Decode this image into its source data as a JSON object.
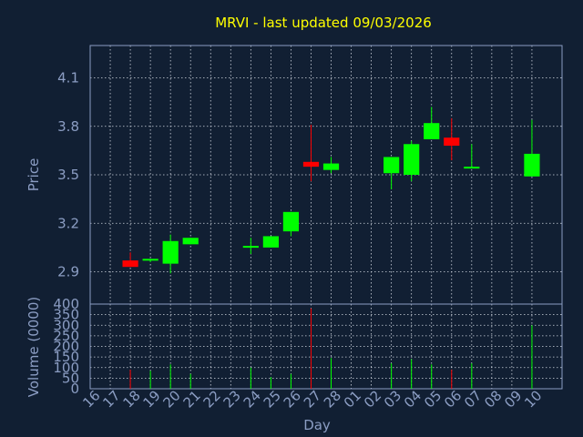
{
  "title": "MRVI - last updated 09/03/2026",
  "colors": {
    "background": "#111f33",
    "title": "#ffff00",
    "axis_text": "#8b9dc3",
    "up": "#00ff00",
    "down": "#ff0000",
    "grid": "#d0d6e0"
  },
  "chart_data": [
    {
      "type": "candlestick",
      "ylabel": "Price",
      "ylim": [
        2.7,
        4.3
      ],
      "yticks": [
        "2.9",
        "3.2",
        "3.5",
        "3.8",
        "4.1"
      ],
      "grid": true,
      "candles": [
        {
          "day": "17",
          "open": 2.97,
          "high": 3.02,
          "low": 2.93,
          "close": 2.93
        },
        {
          "day": "18",
          "open": 2.97,
          "high": 2.98,
          "low": 2.96,
          "close": 2.98
        },
        {
          "day": "19",
          "open": 2.95,
          "high": 3.13,
          "low": 2.89,
          "close": 3.09
        },
        {
          "day": "20",
          "open": 3.07,
          "high": 3.11,
          "low": 3.07,
          "close": 3.11
        },
        {
          "day": "23",
          "open": 3.05,
          "high": 3.11,
          "low": 3.01,
          "close": 3.06
        },
        {
          "day": "24",
          "open": 3.05,
          "high": 3.12,
          "low": 3.05,
          "close": 3.12
        },
        {
          "day": "25",
          "open": 3.15,
          "high": 3.27,
          "low": 3.12,
          "close": 3.27
        },
        {
          "day": "26",
          "open": 3.58,
          "high": 3.81,
          "low": 3.46,
          "close": 3.55
        },
        {
          "day": "27",
          "open": 3.53,
          "high": 3.61,
          "low": 3.51,
          "close": 3.57
        },
        {
          "day": "02",
          "open": 3.51,
          "high": 3.61,
          "low": 3.41,
          "close": 3.61
        },
        {
          "day": "03",
          "open": 3.5,
          "high": 3.71,
          "low": 3.46,
          "close": 3.69
        },
        {
          "day": "04",
          "open": 3.72,
          "high": 3.92,
          "low": 3.72,
          "close": 3.82
        },
        {
          "day": "05",
          "open": 3.73,
          "high": 3.85,
          "low": 3.59,
          "close": 3.68
        },
        {
          "day": "06",
          "open": 3.54,
          "high": 3.69,
          "low": 3.54,
          "close": 3.55
        },
        {
          "day": "09",
          "open": 3.49,
          "high": 3.84,
          "low": 3.49,
          "close": 3.63
        }
      ]
    },
    {
      "type": "bar",
      "ylabel": "Volume (0000)",
      "xlabel": "Day",
      "ylim": [
        0,
        400
      ],
      "yticks": [
        "0",
        "50",
        "100",
        "150",
        "200",
        "250",
        "300",
        "350",
        "400"
      ],
      "grid": true,
      "categories": [
        "16",
        "17",
        "18",
        "19",
        "20",
        "21",
        "22",
        "23",
        "24",
        "25",
        "26",
        "27",
        "28",
        "01",
        "02",
        "03",
        "04",
        "05",
        "06",
        "07",
        "08",
        "09",
        "10"
      ],
      "volumes": [
        {
          "day": "17",
          "value": 90,
          "direction": "down"
        },
        {
          "day": "18",
          "value": 85,
          "direction": "up"
        },
        {
          "day": "19",
          "value": 115,
          "direction": "up"
        },
        {
          "day": "20",
          "value": 70,
          "direction": "up"
        },
        {
          "day": "23",
          "value": 100,
          "direction": "up"
        },
        {
          "day": "24",
          "value": 55,
          "direction": "up"
        },
        {
          "day": "25",
          "value": 70,
          "direction": "up"
        },
        {
          "day": "26",
          "value": 380,
          "direction": "down"
        },
        {
          "day": "27",
          "value": 145,
          "direction": "up"
        },
        {
          "day": "02",
          "value": 120,
          "direction": "up"
        },
        {
          "day": "03",
          "value": 140,
          "direction": "up"
        },
        {
          "day": "04",
          "value": 115,
          "direction": "up"
        },
        {
          "day": "05",
          "value": 90,
          "direction": "down"
        },
        {
          "day": "06",
          "value": 120,
          "direction": "up"
        },
        {
          "day": "09",
          "value": 300,
          "direction": "up"
        }
      ]
    }
  ]
}
